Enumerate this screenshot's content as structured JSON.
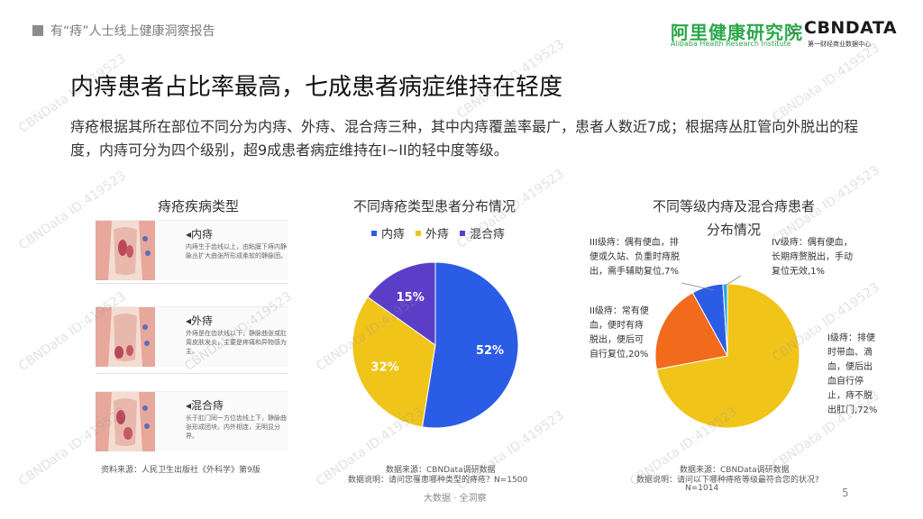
{
  "header": {
    "report_title": "有“痔”人士线上健康洞察报告",
    "logo_ali": "阿里健康研究院",
    "logo_ali_sub": "Alibaba Health Research Institute",
    "logo_times": "×",
    "logo_cbn": "CBNDATA",
    "logo_cbn_sub": "第一财经商业数据中心"
  },
  "page": {
    "title": "内痔患者占比率最高，七成患者病症维持在轻度",
    "description": "痔疮根据其所在部位不同分为内痔、外痔、混合痔三种，其中内痔覆盖率最广，患者人数近7成；根据痔丛肛管向外脱出的程度，内痔可分为四个级别，超9成患者病症维持在I~II的轻中度等级。"
  },
  "left_panel": {
    "title": "痔疮疾病类型",
    "items": [
      {
        "name": "◂内痔",
        "desc": "内痔生于齿线以上，由粘膜下痔内静脉丛扩大曲张所形成柔软的静脉团。"
      },
      {
        "name": "◂外痔",
        "desc": "外痔是在齿状线以下，静脉曲张或肛周皮肤发炎，主要是疼痛和异物感为主。"
      },
      {
        "name": "◂混合痔",
        "desc": "长于肛门同一方位齿线上下，静脉曲张形成团块，内外相连，无明显分界。"
      }
    ],
    "source": "资料来源：人民卫生出版社《外科学》第9版"
  },
  "chart_data": [
    {
      "type": "pie",
      "title": "不同痔疮类型患者分布情况",
      "categories": [
        "内痔",
        "外痔",
        "混合痔"
      ],
      "values": [
        52,
        32,
        15
      ],
      "value_labels": [
        "52%",
        "32%",
        "15%"
      ],
      "colors": [
        "#2b5ce6",
        "#f0c419",
        "#5b3ec8"
      ],
      "legend_position": "top",
      "source": "数据来源：CBNData调研数据",
      "note": "数据说明：请问您罹患哪种类型的痔疮？N=1500"
    },
    {
      "type": "pie",
      "title_line1": "不同等级内痔及混合痔患者",
      "title_line2": "分布情况",
      "categories": [
        "I级痔",
        "II级痔",
        "III级痔",
        "IV级痔"
      ],
      "values": [
        72,
        20,
        7,
        1
      ],
      "colors": [
        "#f0c419",
        "#f26b1d",
        "#2b5ce6",
        "#24a8e0"
      ],
      "labels": [
        [
          "I级痔：排便",
          "时带血、滴",
          "血，便后出",
          "血自行停",
          "止，痔不脱",
          "出肛门,72%"
        ],
        [
          "II级痔：常有便",
          "血，便时有痔",
          "脱出，便后可",
          "自行复位,20%"
        ],
        [
          "III级痔：偶有便血，排",
          "便或久站、负重时痔脱",
          "出，需手辅助复位,7%"
        ],
        [
          "IV级痔：偶有便血，",
          "长期痔赘脱出，手动",
          "复位无效,1%"
        ]
      ],
      "source": "数据来源：CBNData调研数据",
      "note_line1": "数据说明：请问以下哪种痔疮等级最符合您的状况?",
      "note_line2": "N=1014"
    }
  ],
  "footer": {
    "text": "大数据 · 全洞察",
    "page_number": "5"
  },
  "watermark": {
    "text": "CBNData ID:419523",
    "color": "#969696"
  }
}
